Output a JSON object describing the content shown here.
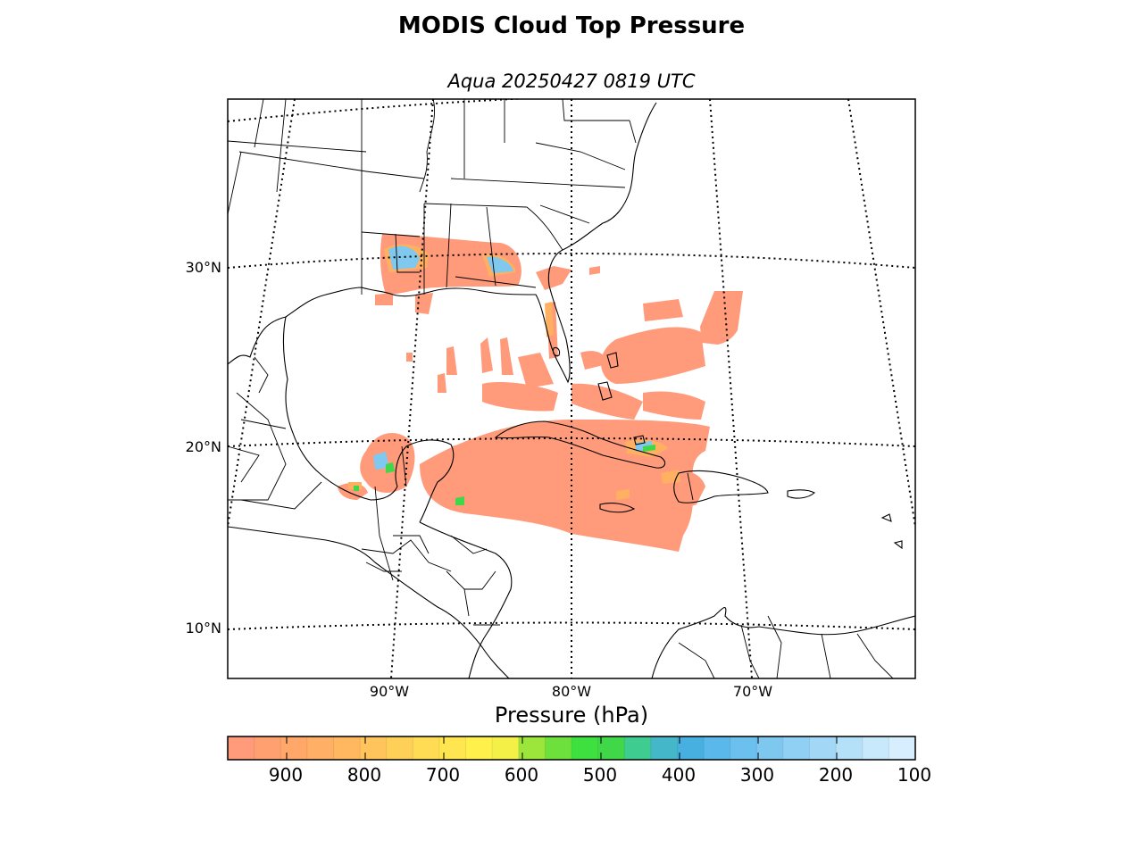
{
  "title": "MODIS Cloud Top Pressure",
  "subtitle": "Aqua 20250427 0819 UTC",
  "map": {
    "lat_labels": [
      "30°N",
      "20°N",
      "10°N"
    ],
    "lon_labels": [
      "90°W",
      "80°W",
      "70°W"
    ],
    "coastline_color": "#000000",
    "gridline_style": "dotted"
  },
  "colorbar": {
    "title": "Pressure (hPa)",
    "ticks": [
      "900",
      "800",
      "700",
      "600",
      "500",
      "400",
      "300",
      "200",
      "100"
    ],
    "range": [
      975,
      100
    ],
    "colors": [
      "#ff9a7a",
      "#ffa070",
      "#ffa86a",
      "#ffb066",
      "#ffb860",
      "#ffc45c",
      "#ffd058",
      "#ffdc54",
      "#ffe650",
      "#fff04c",
      "#f4f048",
      "#9ce63c",
      "#6ee03c",
      "#3ee040",
      "#40d848",
      "#3ecc90",
      "#44b8c8",
      "#48b0e0",
      "#5ab8ea",
      "#6cc0ee",
      "#7ec8f0",
      "#90d0f4",
      "#a2d8f6",
      "#b4e0f8",
      "#c8e8fc",
      "#d6eefe"
    ],
    "cloud_colors": {
      "low": "#ff9a7a",
      "mid_low": "#ffb060",
      "mid": "#e6e050",
      "mid_high": "#40d848",
      "high": "#80c8ee"
    }
  }
}
